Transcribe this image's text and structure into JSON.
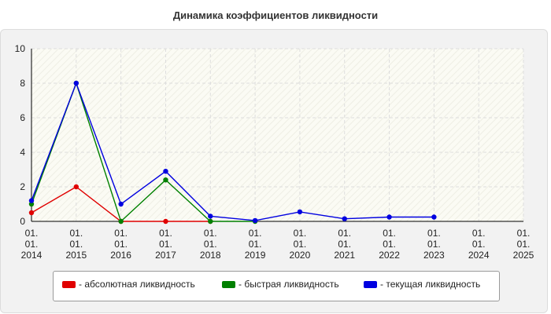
{
  "title": "Динамика коэффициентов ликвидности",
  "chart_data": {
    "type": "line",
    "x": [
      "01.\n01.\n2014",
      "01.\n01.\n2015",
      "01.\n01.\n2016",
      "01.\n01.\n2017",
      "01.\n01.\n2018",
      "01.\n01.\n2019",
      "01.\n01.\n2020",
      "01.\n01.\n2021",
      "01.\n01.\n2022",
      "01.\n01.\n2023",
      "01.\n01.\n2024",
      "01.\n01.\n2025"
    ],
    "ylim": [
      0,
      10
    ],
    "yticks": [
      0,
      2,
      4,
      6,
      8,
      10
    ],
    "grid": true,
    "legend_position": "bottom",
    "series": [
      {
        "name": "- абсолютная ликвидность",
        "color": "#e00000",
        "values": [
          0.5,
          2.0,
          0.0,
          0.0,
          0.0,
          null,
          null,
          null,
          null,
          null,
          null,
          null
        ]
      },
      {
        "name": "- быстрая ликвидность",
        "color": "#008000",
        "values": [
          1.0,
          8.0,
          0.0,
          2.4,
          0.0,
          0.0,
          null,
          null,
          null,
          null,
          null,
          null
        ]
      },
      {
        "name": "- текущая ликвидность",
        "color": "#0000e0",
        "values": [
          1.2,
          8.0,
          1.0,
          2.9,
          0.3,
          0.05,
          0.55,
          0.15,
          0.25,
          0.25,
          null,
          null
        ]
      }
    ]
  }
}
